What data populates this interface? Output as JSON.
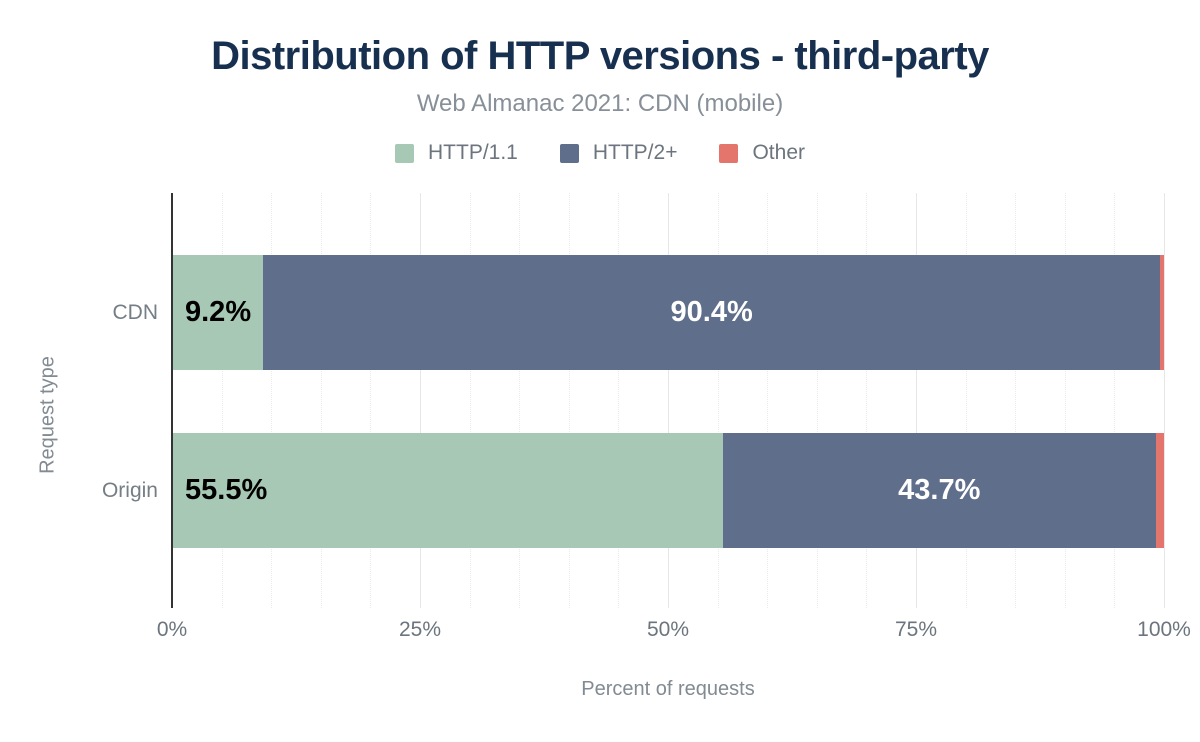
{
  "chart_data": {
    "type": "bar",
    "orientation": "horizontal",
    "stacked": true,
    "title": "Distribution of HTTP versions - third-party",
    "subtitle": "Web Almanac 2021: CDN (mobile)",
    "categories": [
      "CDN",
      "Origin"
    ],
    "series": [
      {
        "name": "HTTP/1.1",
        "color": "#a7c8b4",
        "values": [
          9.2,
          55.5
        ],
        "labels": [
          "9.2%",
          "55.5%"
        ],
        "label_color": "#000000",
        "label_align": "start"
      },
      {
        "name": "HTTP/2+",
        "color": "#5e6e8b",
        "values": [
          90.4,
          43.7
        ],
        "labels": [
          "90.4%",
          "43.7%"
        ],
        "label_color": "#ffffff",
        "label_align": "center"
      },
      {
        "name": "Other",
        "color": "#e3756d",
        "values": [
          0.4,
          0.8
        ],
        "labels": [
          "",
          ""
        ],
        "label_color": "#000000",
        "label_align": "center"
      }
    ],
    "xlabel": "Percent of requests",
    "ylabel": "Request type",
    "xlim": [
      0,
      100
    ],
    "x_ticks": [
      {
        "value": 0,
        "label": "0%"
      },
      {
        "value": 25,
        "label": "25%"
      },
      {
        "value": 50,
        "label": "50%"
      },
      {
        "value": 75,
        "label": "75%"
      },
      {
        "value": 100,
        "label": "100%"
      }
    ],
    "grid": {
      "minor_every": 5,
      "major_every": 25,
      "horizontal": false
    },
    "legend_position": "top"
  },
  "colors": {
    "title": "#17304f",
    "subtitle": "#878f98",
    "legend_text": "#6c757d",
    "tick_text": "#6c757d",
    "category_text": "#757d85",
    "axis_title_text": "#828a92",
    "axis_line": "#333333",
    "gridline_major": "#e7e7e7",
    "gridline_minor": "#ebebeb",
    "background": "#ffffff"
  }
}
